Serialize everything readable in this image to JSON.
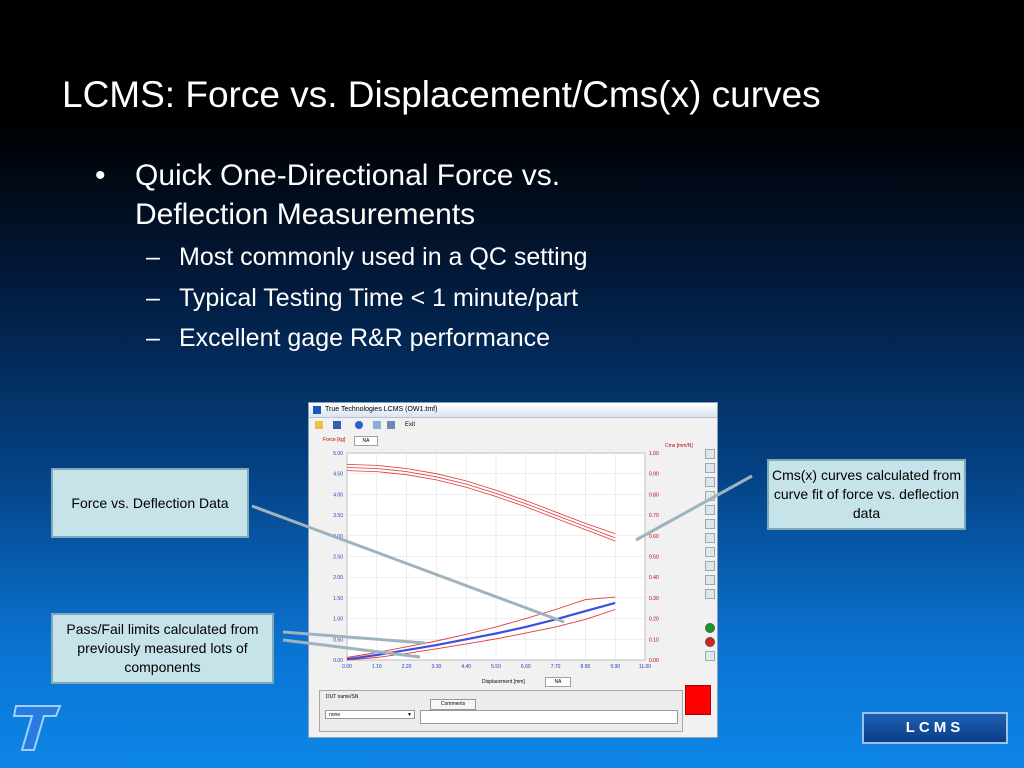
{
  "slide": {
    "title": "LCMS: Force vs. Displacement/Cms(x) curves",
    "bullet": "Quick One-Directional Force vs. Deflection Measurements",
    "subbullets": [
      "Most commonly used in a QC setting",
      "Typical Testing Time < 1 minute/part",
      "Excellent gage R&R performance"
    ],
    "bullet_symbol": "•",
    "dash_symbol": "–"
  },
  "callouts": {
    "force_data": "Force vs. Deflection Data",
    "cms_curves": "Cms(x) curves calculated from curve fit of force vs. deflection data",
    "pass_fail": "Pass/Fail limits calculated from previously measured lots of components"
  },
  "app": {
    "window_title": "True Technologies LCMS (OW1.tmf)",
    "toolbar_exit": "Exit",
    "left_axis_label": "Force [kg]",
    "tab_na": "NA",
    "right_axis_label": "Cms [mm/N]",
    "x_axis_label": "Displacement [mm]",
    "x_na": "NA",
    "dut_label": "DUT name/SN",
    "comments_button": "Comments",
    "dut_value": "none",
    "dropdown_arrow": "▼",
    "colors": {
      "force": "#3a4fe0",
      "cms": "#e23a3a",
      "grid": "#dddddd",
      "result": "#ff0000"
    }
  },
  "chart_data": {
    "type": "line",
    "x_ticks": [
      "0.00",
      "1.10",
      "2.20",
      "3.30",
      "4.40",
      "5.50",
      "6.60",
      "7.70",
      "8.80",
      "9.90",
      "11.00"
    ],
    "y_left_ticks": [
      "5.00",
      "4.50",
      "4.00",
      "3.50",
      "3.00",
      "2.50",
      "2.00",
      "1.50",
      "1.00",
      "0.50",
      "0.00"
    ],
    "y_right_ticks": [
      "1.00",
      "0.90",
      "0.80",
      "0.70",
      "0.60",
      "0.50",
      "0.40",
      "0.30",
      "0.20",
      "0.10",
      "0.00"
    ],
    "xlim": [
      0,
      11
    ],
    "ylim_left": [
      0,
      5
    ],
    "ylim_right": [
      0,
      1
    ],
    "force_x": [
      0.0,
      1.1,
      2.2,
      3.3,
      4.4,
      5.5,
      6.6,
      7.7,
      8.8,
      9.9
    ],
    "force_y": [
      0.02,
      0.12,
      0.24,
      0.36,
      0.5,
      0.64,
      0.8,
      0.98,
      1.18,
      1.38
    ],
    "force_upper_limit": [
      0.06,
      0.18,
      0.32,
      0.46,
      0.62,
      0.8,
      1.0,
      1.22,
      1.46,
      1.52
    ],
    "force_lower_limit": [
      0.0,
      0.06,
      0.16,
      0.27,
      0.39,
      0.51,
      0.65,
      0.8,
      0.98,
      1.22
    ],
    "cms_x": [
      0.0,
      1.1,
      2.2,
      3.3,
      4.4,
      5.5,
      6.6,
      7.7,
      8.8,
      9.9
    ],
    "cms_y": [
      0.93,
      0.925,
      0.91,
      0.885,
      0.85,
      0.805,
      0.755,
      0.7,
      0.645,
      0.59
    ],
    "cms_upper": [
      0.945,
      0.94,
      0.925,
      0.9,
      0.865,
      0.82,
      0.77,
      0.715,
      0.66,
      0.61
    ],
    "cms_lower": [
      0.915,
      0.91,
      0.895,
      0.87,
      0.835,
      0.79,
      0.74,
      0.685,
      0.63,
      0.575
    ]
  },
  "badge": {
    "text": "LCMS"
  }
}
